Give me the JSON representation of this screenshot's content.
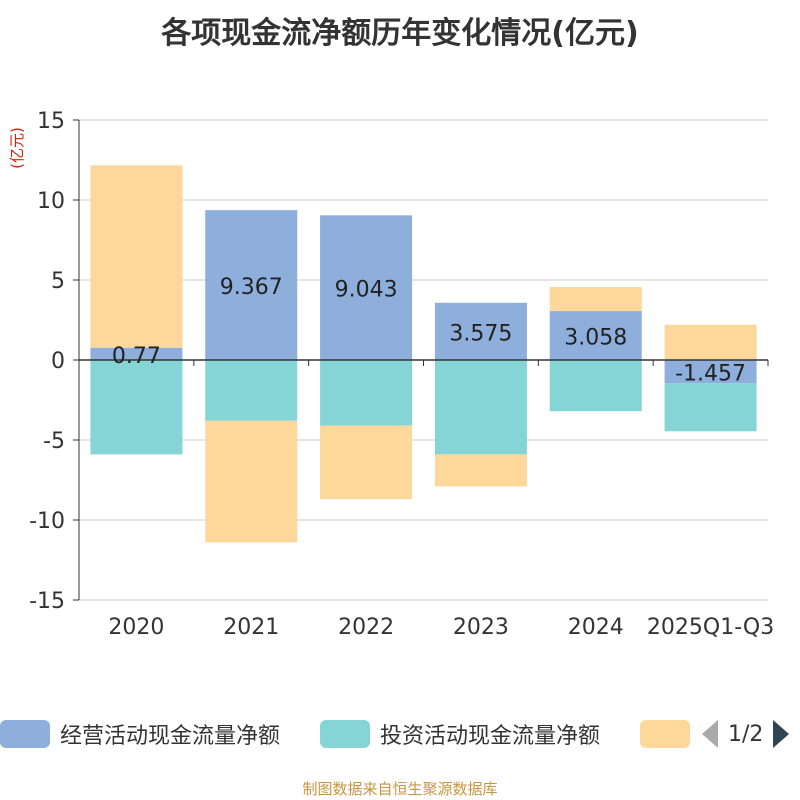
{
  "title": "各项现金流净额历年变化情况(亿元)",
  "source": "制图数据来自恒生聚源数据库",
  "colors": {
    "operating": "#8eaedb",
    "investing": "#86d5d6",
    "financing": "#fdd89a",
    "axis": "#333333",
    "grid": "#cccccc",
    "unit": "#d81e06"
  },
  "chart_data": {
    "type": "bar",
    "stacked": true,
    "title": "各项现金流净额历年变化情况(亿元)",
    "ylabel": "(亿元)",
    "ylim": [
      -15,
      15
    ],
    "yticks": [
      15,
      10,
      5,
      0,
      -5,
      -10,
      -15
    ],
    "categories": [
      "2020",
      "2021",
      "2022",
      "2023",
      "2024",
      "2025Q1-Q3"
    ],
    "series": [
      {
        "name": "经营活动现金流量净额",
        "color": "#8eaedb",
        "values": [
          0.77,
          9.367,
          9.043,
          3.575,
          3.058,
          -1.457
        ],
        "labels": [
          "0.77",
          "9.367",
          "9.043",
          "3.575",
          "3.058",
          "-1.457"
        ]
      },
      {
        "name": "投资活动现金流量净额",
        "color": "#86d5d6",
        "values": [
          -5.9,
          -3.8,
          -4.1,
          -5.9,
          -3.2,
          -3.0
        ]
      },
      {
        "name": "",
        "color": "#fdd89a",
        "values": [
          11.4,
          -7.6,
          -4.6,
          -2.0,
          1.5,
          2.2
        ]
      }
    ]
  },
  "legend": {
    "items": [
      {
        "label": "经营活动现金流量净额",
        "color": "#8eaedb"
      },
      {
        "label": "投资活动现金流量净额",
        "color": "#86d5d6"
      },
      {
        "label": "",
        "color": "#fdd89a"
      }
    ],
    "page": "1/2"
  }
}
